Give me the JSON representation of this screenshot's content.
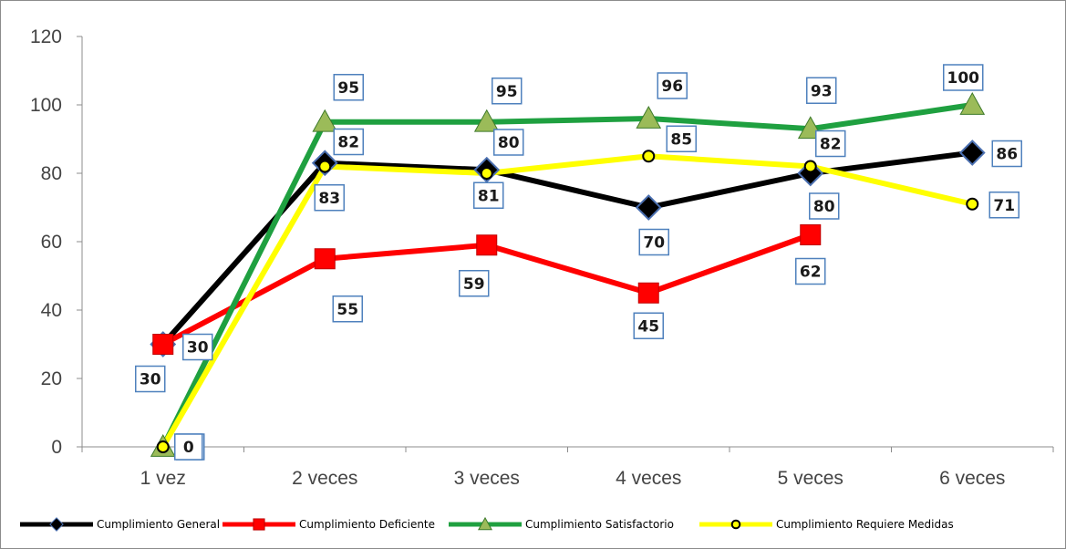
{
  "chart_data": {
    "type": "line",
    "title": "",
    "xlabel": "",
    "ylabel": "",
    "categories": [
      "1 vez",
      "2 veces",
      "3 veces",
      "4 veces",
      "5 veces",
      "6 veces"
    ],
    "ylim": [
      0,
      120
    ],
    "yticks": [
      "0",
      "20",
      "40",
      "60",
      "80",
      "100",
      "120"
    ],
    "grid": false,
    "legend": "bottom",
    "series": [
      {
        "name": "Cumplimiento General",
        "color": "#000000",
        "marker": "diamond",
        "values": [
          30,
          83,
          81,
          70,
          80,
          86
        ],
        "labels": [
          "30",
          "83",
          "81",
          "70",
          "80",
          "86"
        ]
      },
      {
        "name": "Cumplimiento Deficiente",
        "color": "#ff0000",
        "marker": "square",
        "values": [
          30,
          55,
          59,
          45,
          62,
          null
        ],
        "labels": [
          "30",
          "55",
          "59",
          "45",
          "62",
          null
        ]
      },
      {
        "name": "Cumplimiento Satisfactorio",
        "color": "#1fa040",
        "marker": "triangle",
        "values": [
          0,
          95,
          95,
          96,
          93,
          100
        ],
        "labels": [
          "0",
          "95",
          "95",
          "96",
          "93",
          "100"
        ]
      },
      {
        "name": "Cumplimiento Requiere Medidas",
        "color": "#ffff00",
        "marker": "circle",
        "values": [
          0,
          82,
          80,
          85,
          82,
          71
        ],
        "labels": [
          "0",
          "82",
          "80",
          "85",
          "82",
          "71"
        ]
      }
    ]
  }
}
